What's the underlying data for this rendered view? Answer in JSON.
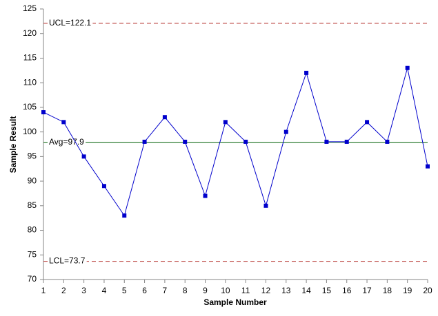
{
  "chart_data": {
    "type": "line",
    "x_label": "Sample Number",
    "y_label": "Sample Result",
    "x": [
      1,
      2,
      3,
      4,
      5,
      6,
      7,
      8,
      9,
      10,
      11,
      12,
      13,
      14,
      15,
      16,
      17,
      18,
      19,
      20
    ],
    "series": [
      {
        "color": "#0000cc",
        "values": [
          104,
          102,
          95,
          89,
          83,
          98,
          103,
          98,
          87,
          102,
          98,
          85,
          100,
          112,
          98,
          98,
          102,
          98,
          113,
          93
        ]
      }
    ],
    "xlim": [
      1,
      20
    ],
    "xticks": [
      1,
      2,
      3,
      4,
      5,
      6,
      7,
      8,
      9,
      10,
      11,
      12,
      13,
      14,
      15,
      16,
      17,
      18,
      19,
      20
    ],
    "ylim": [
      70,
      125
    ],
    "yticks": [
      70,
      75,
      80,
      85,
      90,
      95,
      100,
      105,
      110,
      115,
      120,
      125
    ],
    "control_lines": [
      {
        "value": 122.1,
        "label": "UCL=122.1",
        "color": "#c0504d",
        "dashed": true
      },
      {
        "value": 97.9,
        "label": "Avg=97.9",
        "color": "#2e7d32",
        "dashed": false
      },
      {
        "value": 73.7,
        "label": "LCL=73.7",
        "color": "#c0504d",
        "dashed": true
      }
    ]
  }
}
